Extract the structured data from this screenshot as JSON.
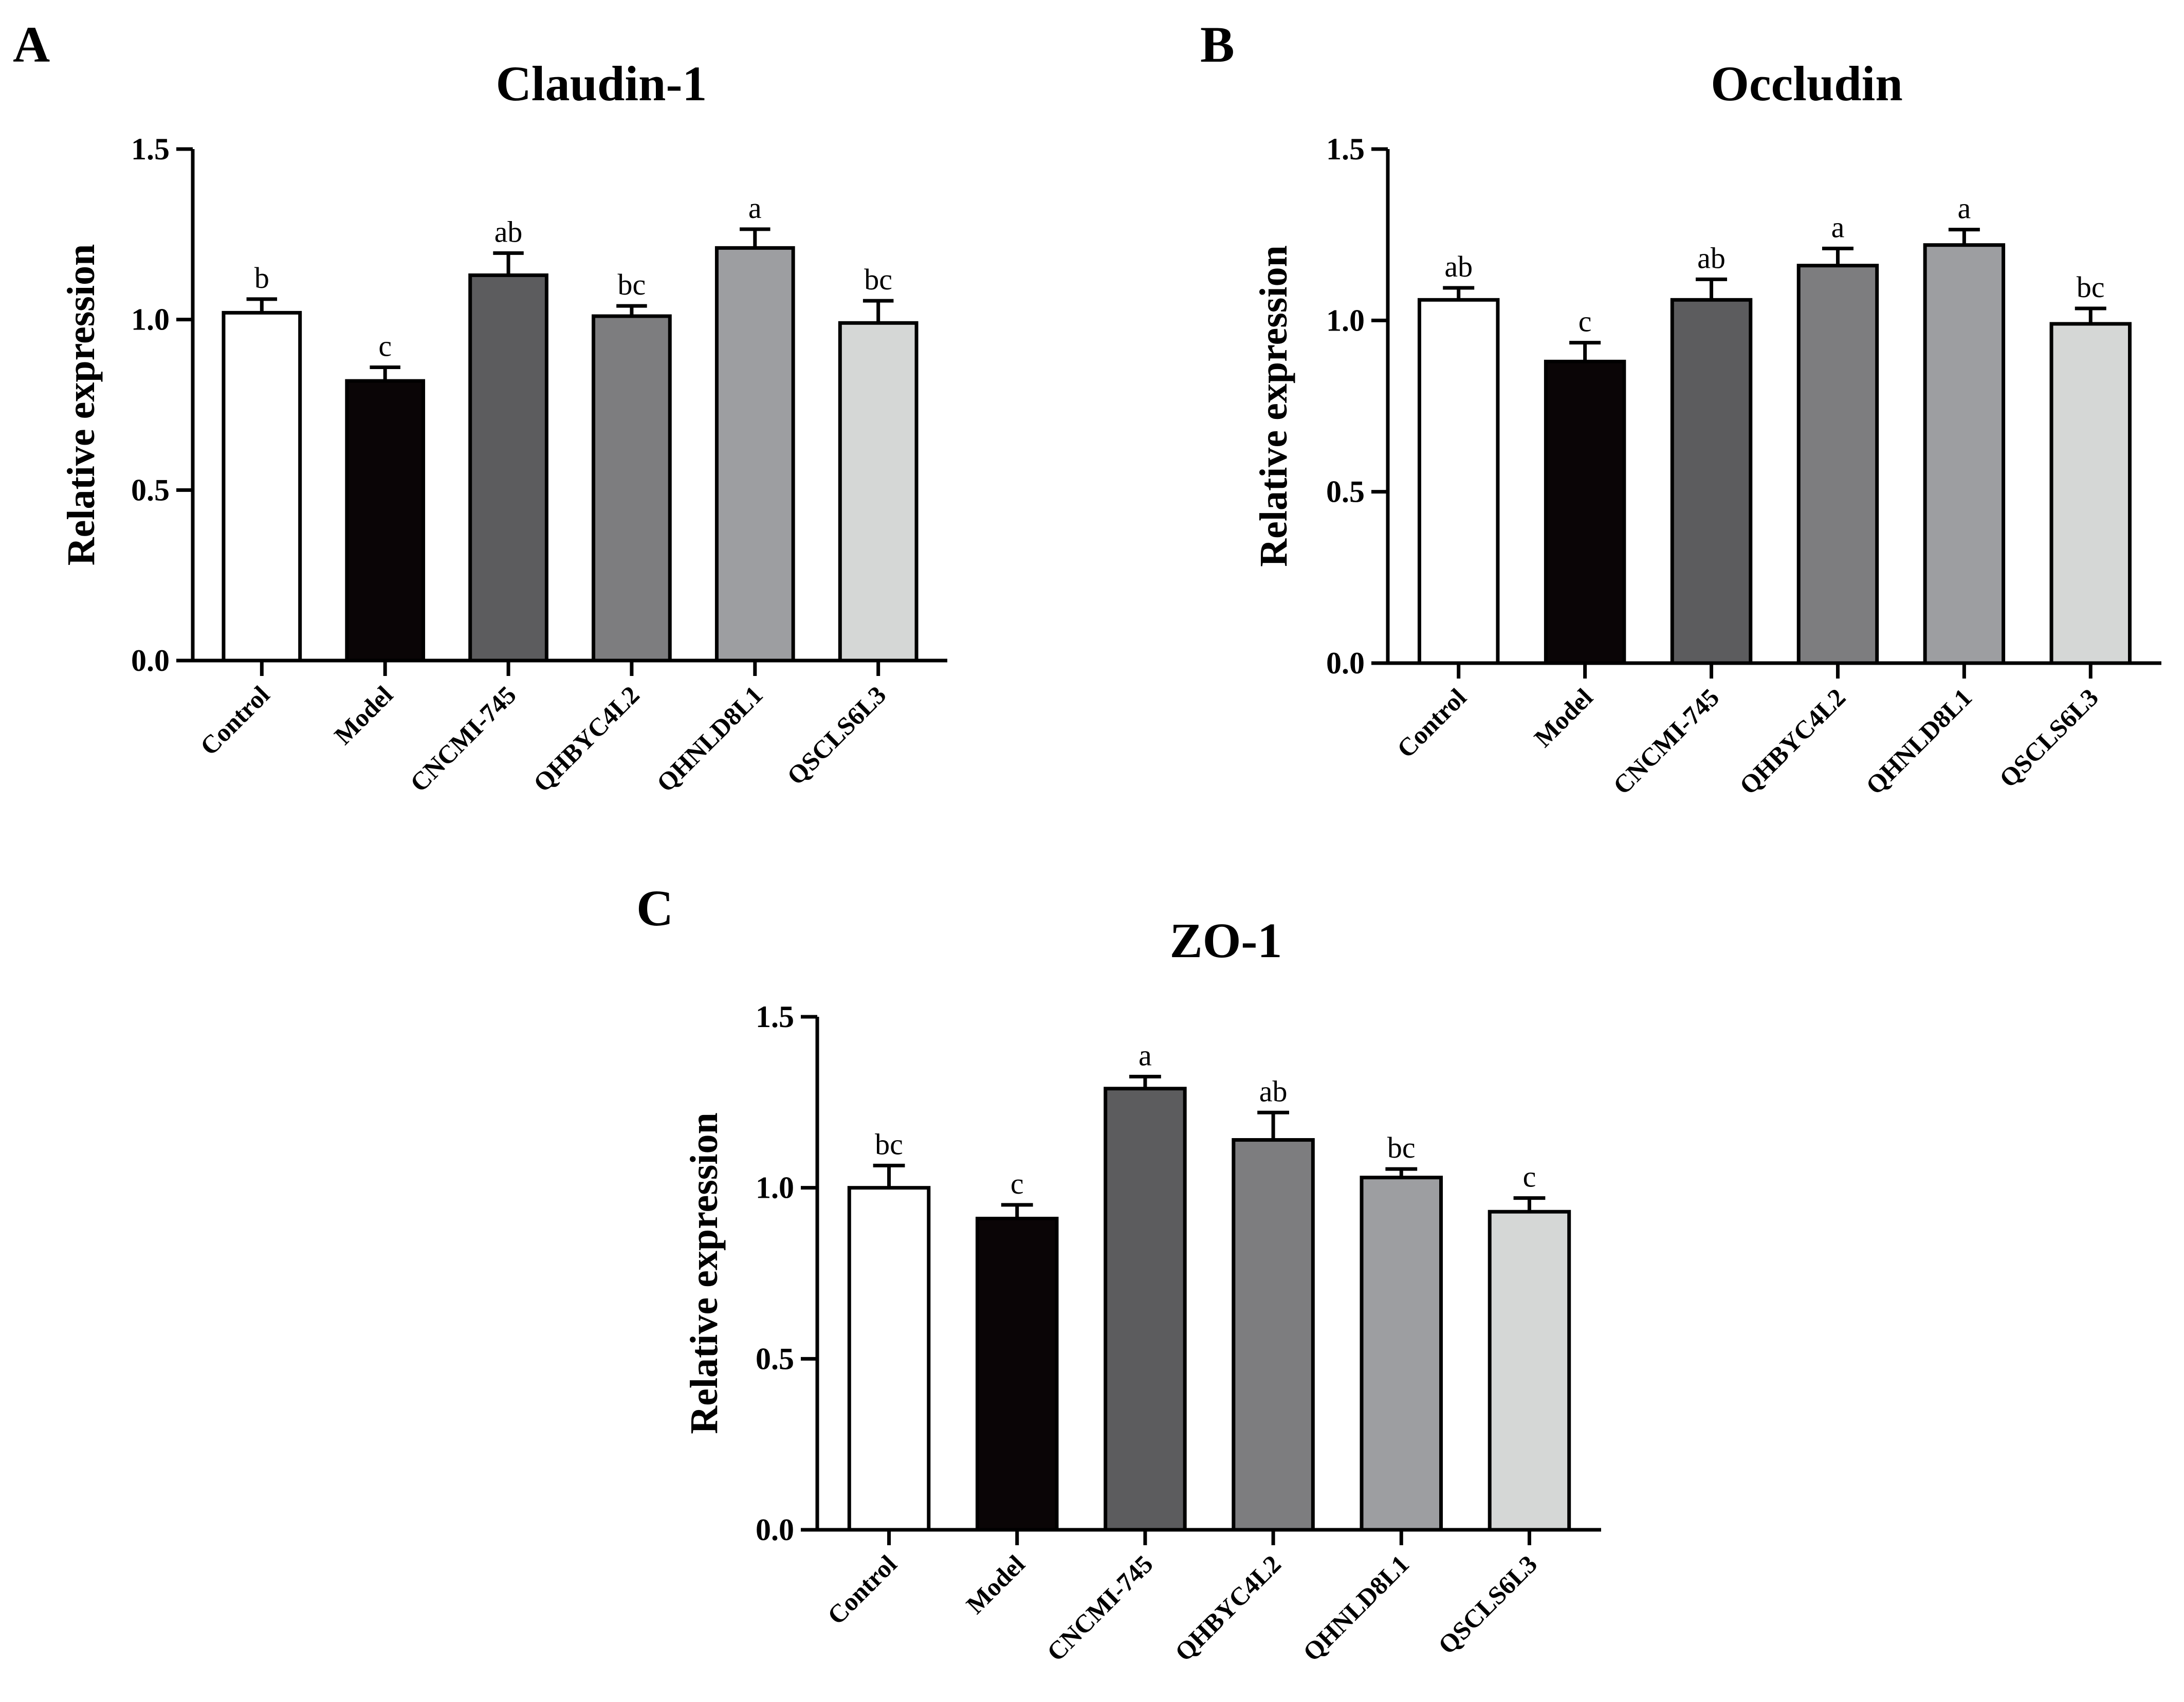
{
  "chart_data": [
    {
      "panel": "A",
      "type": "bar",
      "title": "Claudin-1",
      "xlabel": "",
      "ylabel": "Relative expression",
      "ylim": [
        0,
        1.5
      ],
      "yticks": [
        "0.0",
        "0.5",
        "1.0",
        "1.5"
      ],
      "categories": [
        "Control",
        "Model",
        "CNCMI-745",
        "QHBYC4L2",
        "QHNLD8L1",
        "QSCLS6L3"
      ],
      "values": [
        1.02,
        0.82,
        1.13,
        1.01,
        1.21,
        0.99
      ],
      "errors": [
        0.04,
        0.04,
        0.065,
        0.03,
        0.055,
        0.065
      ],
      "significance": [
        "b",
        "c",
        "ab",
        "bc",
        "a",
        "bc"
      ],
      "colors": [
        "#ffffff",
        "#0a0506",
        "#5c5c5e",
        "#7d7d7f",
        "#9d9ea1",
        "#d5d7d6"
      ]
    },
    {
      "panel": "B",
      "type": "bar",
      "title": "Occludin",
      "xlabel": "",
      "ylabel": "Relative expression",
      "ylim": [
        0,
        1.5
      ],
      "yticks": [
        "0.0",
        "0.5",
        "1.0",
        "1.5"
      ],
      "categories": [
        "Control",
        "Model",
        "CNCMI-745",
        "QHBYC4L2",
        "QHNLD8L1",
        "QSCLS6L3"
      ],
      "values": [
        1.06,
        0.88,
        1.06,
        1.16,
        1.22,
        0.99
      ],
      "errors": [
        0.035,
        0.055,
        0.06,
        0.05,
        0.045,
        0.045
      ],
      "significance": [
        "ab",
        "c",
        "ab",
        "a",
        "a",
        "bc"
      ],
      "colors": [
        "#ffffff",
        "#0a0506",
        "#5c5c5e",
        "#7d7d7f",
        "#9d9ea1",
        "#d5d7d6"
      ]
    },
    {
      "panel": "C",
      "type": "bar",
      "title": "ZO-1",
      "xlabel": "",
      "ylabel": "Relative expression",
      "ylim": [
        0,
        1.5
      ],
      "yticks": [
        "0.0",
        "0.5",
        "1.0",
        "1.5"
      ],
      "categories": [
        "Control",
        "Model",
        "CNCMI-745",
        "QHBYC4L2",
        "QHNLD8L1",
        "QSCLS6L3"
      ],
      "values": [
        1.0,
        0.91,
        1.29,
        1.14,
        1.03,
        0.93
      ],
      "errors": [
        0.065,
        0.04,
        0.035,
        0.08,
        0.025,
        0.04
      ],
      "significance": [
        "bc",
        "c",
        "a",
        "ab",
        "bc",
        "c"
      ],
      "colors": [
        "#ffffff",
        "#0a0506",
        "#5c5c5e",
        "#7d7d7f",
        "#9d9ea1",
        "#d5d7d6"
      ]
    }
  ]
}
